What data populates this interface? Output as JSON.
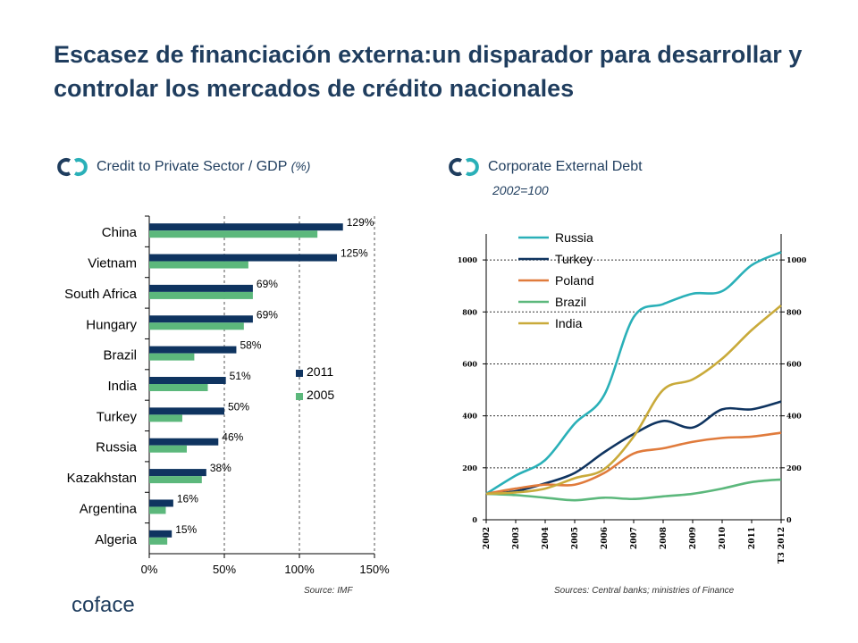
{
  "title": "Escasez de financiación externa:un disparador para desarrollar y controlar los mercados de crédito nacionales",
  "left_chart": {
    "heading": "Credit to Private Sector / GDP",
    "unit": "(%)",
    "source": "Source: IMF"
  },
  "right_chart": {
    "heading": "Corporate External Debt",
    "subheading": "2002=100",
    "source": "Sources: Central banks; ministries of Finance"
  },
  "logo": {
    "text": "coface"
  },
  "colors": {
    "title": "#1f3d5e",
    "bar2011": "#0f3460",
    "bar2005": "#5cb87c",
    "icon_dark": "#1f3d5e",
    "icon_teal": "#2ab0b8"
  },
  "chart_data": [
    {
      "type": "bar",
      "orientation": "horizontal",
      "categories": [
        "China",
        "Vietnam",
        "South Africa",
        "Hungary",
        "Brazil",
        "India",
        "Turkey",
        "Russia",
        "Kazakhstan",
        "Argentina",
        "Algeria"
      ],
      "series": [
        {
          "name": "2011",
          "color": "#0f3460",
          "values": [
            129,
            125,
            69,
            69,
            58,
            51,
            50,
            46,
            38,
            16,
            15
          ],
          "labels": [
            "129%",
            "125%",
            "69%",
            "69%",
            "58%",
            "51%",
            "50%",
            "46%",
            "38%",
            "16%",
            "15%"
          ]
        },
        {
          "name": "2005",
          "color": "#5cb87c",
          "values": [
            112,
            66,
            69,
            63,
            30,
            39,
            22,
            25,
            35,
            11,
            12
          ]
        }
      ],
      "xlim": [
        0,
        150
      ],
      "xticks": [
        "0%",
        "50%",
        "100%",
        "150%"
      ],
      "grid": "vertical dashed",
      "legend_position": "right-middle"
    },
    {
      "type": "line",
      "x": [
        "2002",
        "2003",
        "2004",
        "2005",
        "2006",
        "2007",
        "2008",
        "2009",
        "2010",
        "2011",
        "T3 2012"
      ],
      "ylim": [
        0,
        1100
      ],
      "yticks": [
        "0",
        "200",
        "400",
        "600",
        "800",
        "1000"
      ],
      "grid": "horizontal dashed",
      "secondary_y_axis": true,
      "legend_position": "top-left",
      "series": [
        {
          "name": "Russia",
          "color": "#2ab0b8",
          "values": [
            100,
            170,
            230,
            370,
            480,
            780,
            830,
            870,
            880,
            980,
            1030
          ]
        },
        {
          "name": "Turkey",
          "color": "#0f3460",
          "values": [
            100,
            110,
            140,
            180,
            260,
            330,
            380,
            355,
            425,
            425,
            455
          ]
        },
        {
          "name": "Poland",
          "color": "#e07b3c",
          "values": [
            100,
            120,
            135,
            135,
            180,
            255,
            275,
            300,
            315,
            320,
            335
          ]
        },
        {
          "name": "Brazil",
          "color": "#5cb87c",
          "values": [
            100,
            95,
            85,
            75,
            85,
            80,
            90,
            100,
            120,
            145,
            155
          ]
        },
        {
          "name": "India",
          "color": "#c9aa3a",
          "values": [
            100,
            105,
            120,
            160,
            195,
            320,
            500,
            540,
            620,
            730,
            825
          ]
        }
      ]
    }
  ]
}
